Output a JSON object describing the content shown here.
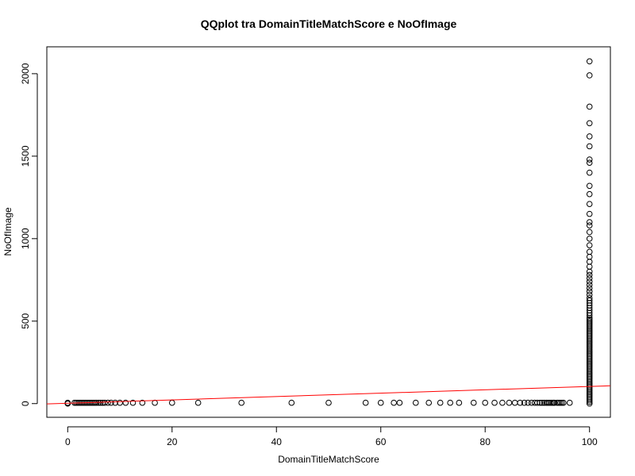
{
  "chart_data": {
    "type": "scatter",
    "title": "QQplot tra DomainTitleMatchScore e NoOfImage",
    "xlabel": "DomainTitleMatchScore",
    "ylabel": "NoOfImage",
    "xlim": [
      -4,
      104
    ],
    "ylim": [
      -83,
      2163
    ],
    "xticks": [
      0,
      20,
      40,
      60,
      80,
      100
    ],
    "yticks": [
      0,
      500,
      1000,
      1500,
      2000
    ],
    "grid": false,
    "legend": "none",
    "point_color": "#000000",
    "fit_line": {
      "color": "#ff0000",
      "intercept": 2,
      "slope": 1.02
    },
    "series": [
      {
        "points": [
          [
            0,
            0
          ],
          [
            0,
            2
          ],
          [
            0,
            5
          ],
          [
            1.3,
            5
          ],
          [
            1.6,
            5
          ],
          [
            1.9,
            5
          ],
          [
            2.2,
            5
          ],
          [
            2.5,
            5
          ],
          [
            2.8,
            5
          ],
          [
            3.1,
            5
          ],
          [
            3.4,
            5
          ],
          [
            3.7,
            5
          ],
          [
            4,
            5
          ],
          [
            4.3,
            5
          ],
          [
            4.6,
            5
          ],
          [
            4.9,
            5
          ],
          [
            5.2,
            5
          ],
          [
            5.5,
            5
          ],
          [
            5.9,
            5
          ],
          [
            6.3,
            5
          ],
          [
            6.7,
            5
          ],
          [
            7.1,
            5
          ],
          [
            7.7,
            5
          ],
          [
            8.3,
            5
          ],
          [
            9.1,
            5
          ],
          [
            10,
            5
          ],
          [
            11.1,
            5
          ],
          [
            12.5,
            5
          ],
          [
            14.3,
            5
          ],
          [
            16.7,
            5
          ],
          [
            20,
            5
          ],
          [
            25,
            5
          ],
          [
            33.3,
            5
          ],
          [
            42.9,
            5
          ],
          [
            50,
            5
          ],
          [
            57.1,
            5
          ],
          [
            60,
            5
          ],
          [
            62.5,
            5
          ],
          [
            63.6,
            5
          ],
          [
            66.7,
            5
          ],
          [
            69.2,
            5
          ],
          [
            71.4,
            5
          ],
          [
            73.3,
            5
          ],
          [
            75,
            5
          ],
          [
            77.8,
            5
          ],
          [
            80,
            5
          ],
          [
            81.8,
            5
          ],
          [
            83.3,
            5
          ],
          [
            84.6,
            5
          ],
          [
            85.7,
            5
          ],
          [
            86.7,
            5
          ],
          [
            87.5,
            5
          ],
          [
            88.2,
            5
          ],
          [
            88.9,
            5
          ],
          [
            89.5,
            5
          ],
          [
            90,
            5
          ],
          [
            90.5,
            5
          ],
          [
            90.9,
            5
          ],
          [
            91.3,
            5
          ],
          [
            91.7,
            5
          ],
          [
            92,
            5
          ],
          [
            92.3,
            5
          ],
          [
            92.6,
            5
          ],
          [
            92.9,
            5
          ],
          [
            93.1,
            5
          ],
          [
            93.3,
            5
          ],
          [
            93.8,
            5
          ],
          [
            94.1,
            5
          ],
          [
            94.4,
            5
          ],
          [
            94.7,
            5
          ],
          [
            95,
            5
          ],
          [
            96.2,
            5
          ],
          [
            100,
            0
          ],
          [
            100,
            10
          ],
          [
            100,
            20
          ],
          [
            100,
            30
          ],
          [
            100,
            40
          ],
          [
            100,
            50
          ],
          [
            100,
            60
          ],
          [
            100,
            70
          ],
          [
            100,
            80
          ],
          [
            100,
            90
          ],
          [
            100,
            100
          ],
          [
            100,
            110
          ],
          [
            100,
            120
          ],
          [
            100,
            130
          ],
          [
            100,
            140
          ],
          [
            100,
            150
          ],
          [
            100,
            160
          ],
          [
            100,
            170
          ],
          [
            100,
            180
          ],
          [
            100,
            190
          ],
          [
            100,
            200
          ],
          [
            100,
            210
          ],
          [
            100,
            220
          ],
          [
            100,
            230
          ],
          [
            100,
            240
          ],
          [
            100,
            250
          ],
          [
            100,
            260
          ],
          [
            100,
            270
          ],
          [
            100,
            280
          ],
          [
            100,
            290
          ],
          [
            100,
            300
          ],
          [
            100,
            310
          ],
          [
            100,
            320
          ],
          [
            100,
            330
          ],
          [
            100,
            340
          ],
          [
            100,
            350
          ],
          [
            100,
            360
          ],
          [
            100,
            370
          ],
          [
            100,
            380
          ],
          [
            100,
            390
          ],
          [
            100,
            400
          ],
          [
            100,
            410
          ],
          [
            100,
            420
          ],
          [
            100,
            430
          ],
          [
            100,
            440
          ],
          [
            100,
            450
          ],
          [
            100,
            460
          ],
          [
            100,
            470
          ],
          [
            100,
            480
          ],
          [
            100,
            490
          ],
          [
            100,
            500
          ],
          [
            100,
            510
          ],
          [
            100,
            520
          ],
          [
            100,
            535
          ],
          [
            100,
            550
          ],
          [
            100,
            565
          ],
          [
            100,
            580
          ],
          [
            100,
            595
          ],
          [
            100,
            610
          ],
          [
            100,
            625
          ],
          [
            100,
            640
          ],
          [
            100,
            660
          ],
          [
            100,
            680
          ],
          [
            100,
            700
          ],
          [
            100,
            720
          ],
          [
            100,
            740
          ],
          [
            100,
            760
          ],
          [
            100,
            780
          ],
          [
            100,
            800
          ],
          [
            100,
            830
          ],
          [
            100,
            860
          ],
          [
            100,
            890
          ],
          [
            100,
            920
          ],
          [
            100,
            960
          ],
          [
            100,
            1000
          ],
          [
            100,
            1040
          ],
          [
            100,
            1080
          ],
          [
            100,
            1100
          ],
          [
            100,
            1150
          ],
          [
            100,
            1210
          ],
          [
            100,
            1270
          ],
          [
            100,
            1320
          ],
          [
            100,
            1400
          ],
          [
            100,
            1460
          ],
          [
            100,
            1480
          ],
          [
            100,
            1560
          ],
          [
            100,
            1620
          ],
          [
            100,
            1700
          ],
          [
            100,
            1800
          ],
          [
            100,
            1990
          ],
          [
            100,
            2075
          ]
        ]
      }
    ]
  }
}
